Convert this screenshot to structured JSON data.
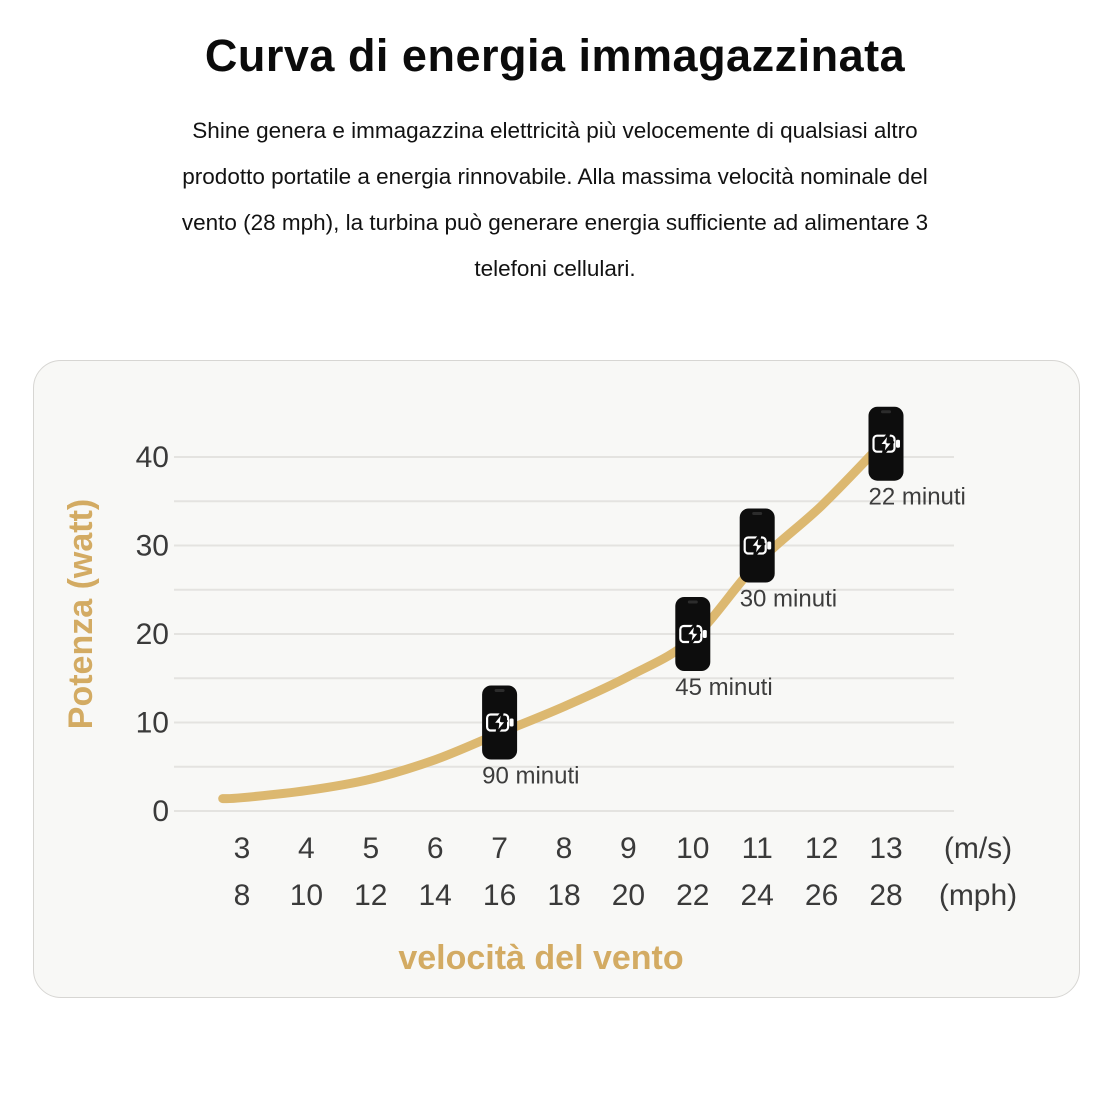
{
  "header": {
    "title": "Curva di energia immagazzinata",
    "description_lines": [
      "Shine genera e immagazzina elettricità più velocemente di qualsiasi altro",
      "prodotto portatile a energia rinnovabile. Alla massima velocità nominale del",
      "vento (28 mph), la turbina può generare energia sufficiente ad alimentare 3",
      "telefoni cellulari."
    ]
  },
  "chart_data": {
    "type": "line",
    "title": "Curva di energia immagazzinata",
    "xlabel": "velocità del vento",
    "ylabel": "Potenza (watt)",
    "x_unit_primary": "(m/s)",
    "x_unit_secondary": "(mph)",
    "x_ms": [
      3,
      4,
      5,
      6,
      7,
      8,
      9,
      10,
      11,
      12,
      13
    ],
    "x_mph": [
      8,
      10,
      12,
      14,
      16,
      18,
      20,
      22,
      24,
      26,
      28
    ],
    "y_ticks": [
      0,
      10,
      20,
      30,
      40
    ],
    "ylim": [
      0,
      45
    ],
    "grid_step": 5,
    "grid_on": true,
    "legend_position": "none",
    "series": [
      {
        "name": "Potenza (watt)",
        "points_ms_watt": [
          [
            2.7,
            1.4
          ],
          [
            3,
            1.5
          ],
          [
            4,
            2.3
          ],
          [
            5,
            3.6
          ],
          [
            6,
            5.8
          ],
          [
            7,
            8.8
          ],
          [
            8,
            11.8
          ],
          [
            9,
            15.2
          ],
          [
            10,
            19.5
          ],
          [
            11,
            28
          ],
          [
            12,
            34.5
          ],
          [
            13,
            42
          ]
        ]
      }
    ],
    "markers": [
      {
        "ms": 7,
        "watt": 10,
        "mph": 16,
        "label": "90 minuti"
      },
      {
        "ms": 10,
        "watt": 20,
        "mph": 22,
        "label": "45 minuti"
      },
      {
        "ms": 11,
        "watt": 30,
        "mph": 24,
        "label": "30 minuti"
      },
      {
        "ms": 13,
        "watt": 41.5,
        "mph": 28,
        "label": "22 minuti"
      }
    ],
    "colors": {
      "curve": "#dcb870",
      "axis_title": "#d3ab63",
      "tick_text": "#3a3a3a",
      "grid": "#e4e3e0",
      "phone_body": "#0d0d0d",
      "phone_glyph": "#ffffff",
      "marker_text": "#3d3d3d",
      "card_bg": "#f8f8f6"
    }
  }
}
